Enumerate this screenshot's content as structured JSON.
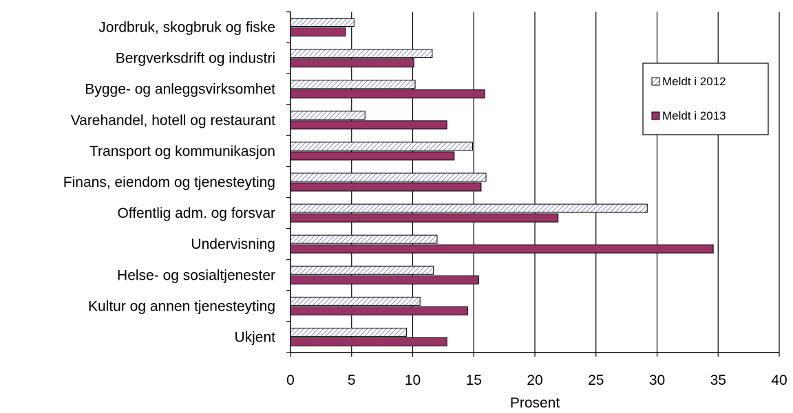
{
  "chart_data": {
    "type": "bar",
    "orientation": "horizontal",
    "categories": [
      "Jordbruk, skogbruk og fiske",
      "Bergverksdrift og industri",
      "Bygge- og anleggsvirksomhet",
      "Varehandel,  hotell og restaurant",
      "Transport og kommunikasjon",
      "Finans, eiendom og tjenesteyting",
      "Offentlig adm. og forsvar",
      "Undervisning",
      "Helse- og sosialtjenester",
      "Kultur og annen tjenesteyting",
      "Ukjent"
    ],
    "series": [
      {
        "name": "Meldt i 2012",
        "values": [
          5.2,
          11.6,
          10.2,
          6.1,
          14.9,
          16.0,
          29.2,
          12.0,
          11.7,
          10.6,
          9.5
        ],
        "color": "#e8e8f5",
        "pattern": "diagonal-hatch"
      },
      {
        "name": "Meldt i 2013",
        "values": [
          4.5,
          10.1,
          15.9,
          12.8,
          13.4,
          15.6,
          21.9,
          34.6,
          15.4,
          14.5,
          12.8
        ],
        "color": "#993366"
      }
    ],
    "xlabel": "Prosent",
    "ylabel": "",
    "xlim": [
      0,
      40
    ],
    "xticks": [
      "0",
      "5",
      "10",
      "15",
      "20",
      "25",
      "30",
      "35",
      "40"
    ],
    "grid": "vertical",
    "legend": "right"
  }
}
